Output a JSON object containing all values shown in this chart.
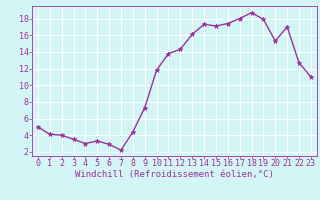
{
  "x": [
    0,
    1,
    2,
    3,
    4,
    5,
    6,
    7,
    8,
    9,
    10,
    11,
    12,
    13,
    14,
    15,
    16,
    17,
    18,
    19,
    20,
    21,
    22,
    23
  ],
  "y": [
    5.0,
    4.1,
    4.0,
    3.5,
    3.0,
    3.3,
    2.9,
    2.2,
    4.4,
    7.3,
    11.8,
    13.8,
    14.3,
    16.1,
    17.3,
    17.1,
    17.4,
    18.0,
    18.7,
    17.9,
    15.3,
    17.0,
    12.7,
    11.0
  ],
  "line_color": "#993399",
  "marker": "*",
  "marker_size": 3.5,
  "bg_color": "#d4f5f5",
  "grid_color": "#ffffff",
  "xlabel": "Windchill (Refroidissement éolien,°C)",
  "xlim": [
    -0.5,
    23.5
  ],
  "ylim": [
    1.5,
    19.5
  ],
  "yticks": [
    2,
    4,
    6,
    8,
    10,
    12,
    14,
    16,
    18
  ],
  "xticks": [
    0,
    1,
    2,
    3,
    4,
    5,
    6,
    7,
    8,
    9,
    10,
    11,
    12,
    13,
    14,
    15,
    16,
    17,
    18,
    19,
    20,
    21,
    22,
    23
  ],
  "tick_color": "#993399",
  "label_color": "#993399",
  "label_fontsize": 6.5,
  "tick_fontsize": 6.0,
  "linewidth": 1.0
}
